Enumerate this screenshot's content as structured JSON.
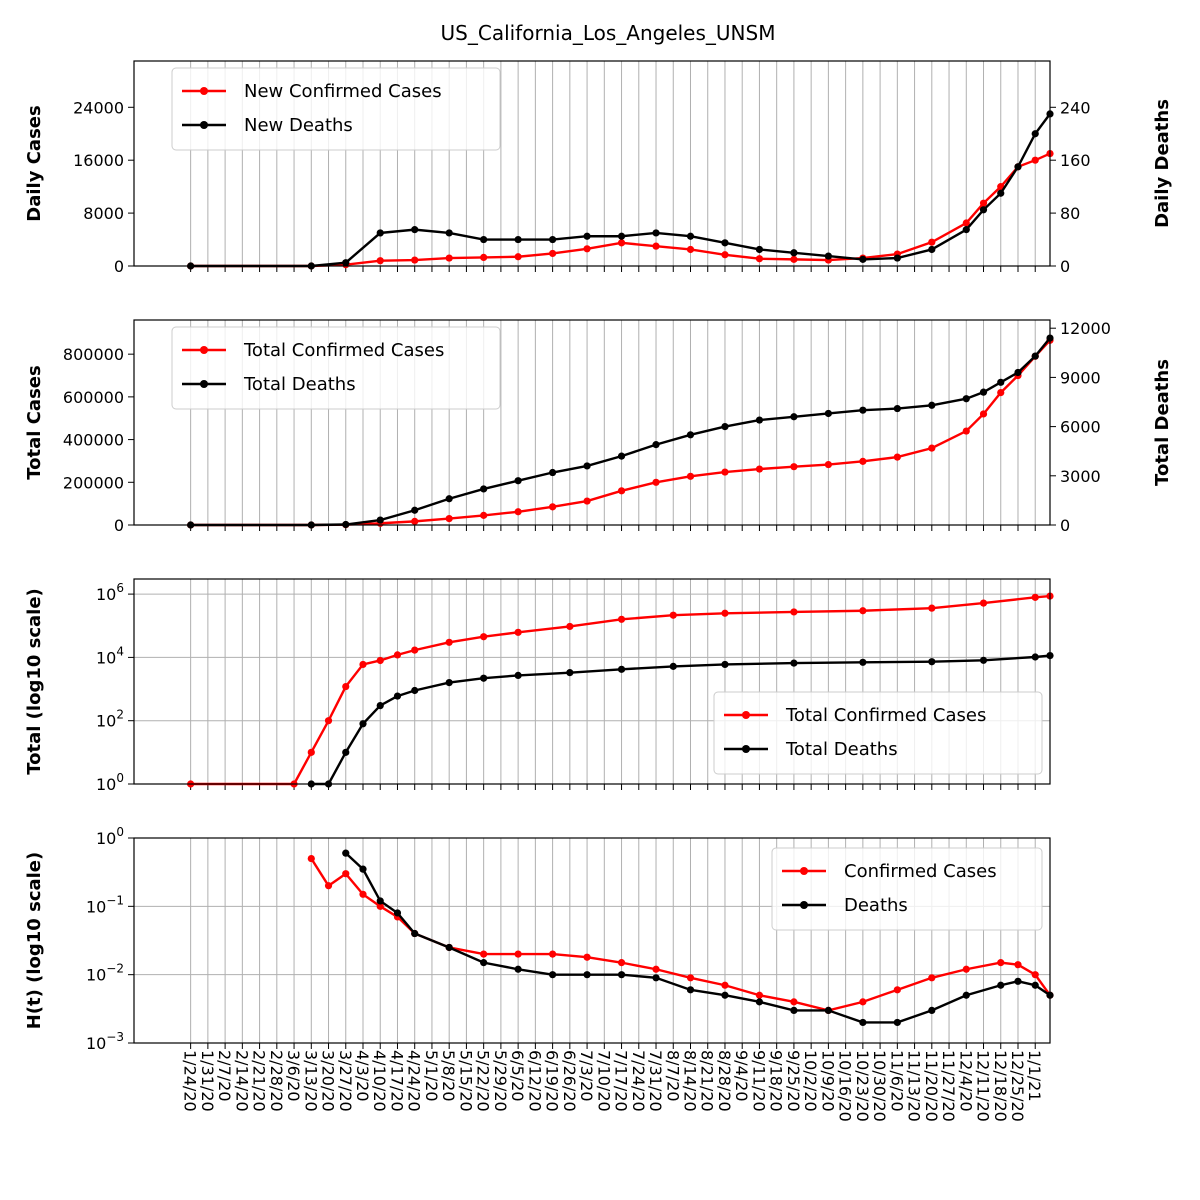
{
  "title": "US_California_Los_Angeles_UNSM",
  "colors": {
    "cases": "#ff0000",
    "deaths": "#000000",
    "grid": "#b0b0b0"
  },
  "x_tick_labels": [
    "1/24/20",
    "1/31/20",
    "2/7/20",
    "2/14/20",
    "2/21/20",
    "2/28/20",
    "3/6/20",
    "3/13/20",
    "3/20/20",
    "3/27/20",
    "4/3/20",
    "4/10/20",
    "4/17/20",
    "4/24/20",
    "5/1/20",
    "5/8/20",
    "5/15/20",
    "5/22/20",
    "5/29/20",
    "6/5/20",
    "6/12/20",
    "6/19/20",
    "6/26/20",
    "7/3/20",
    "7/10/20",
    "7/17/20",
    "7/24/20",
    "7/31/20",
    "8/7/20",
    "8/14/20",
    "8/21/20",
    "8/28/20",
    "9/4/20",
    "9/11/20",
    "9/18/20",
    "9/25/20",
    "10/2/20",
    "10/9/20",
    "10/16/20",
    "10/23/20",
    "10/30/20",
    "11/6/20",
    "11/13/20",
    "11/20/20",
    "11/27/20",
    "12/4/20",
    "12/11/20",
    "12/18/20",
    "12/25/20",
    "1/1/21"
  ],
  "chart_data": [
    {
      "type": "line",
      "x": [
        "1/24/20",
        "3/13/20",
        "3/27/20",
        "4/10/20",
        "4/24/20",
        "5/8/20",
        "5/22/20",
        "6/5/20",
        "6/19/20",
        "7/3/20",
        "7/17/20",
        "7/31/20",
        "8/14/20",
        "8/28/20",
        "9/11/20",
        "9/25/20",
        "10/9/20",
        "10/23/20",
        "11/6/20",
        "11/20/20",
        "12/4/20",
        "12/11/20",
        "12/18/20",
        "12/25/20",
        "1/1/21",
        "1/7/21"
      ],
      "series": [
        {
          "name": "New Confirmed Cases",
          "axis": "left",
          "values": [
            0,
            0,
            200,
            800,
            900,
            1200,
            1300,
            1400,
            1900,
            2600,
            3500,
            3000,
            2500,
            1700,
            1100,
            1000,
            900,
            1200,
            1800,
            3600,
            6500,
            9500,
            12000,
            15000,
            16000,
            17000
          ]
        },
        {
          "name": "New Deaths",
          "axis": "right",
          "values": [
            0,
            0,
            5,
            50,
            55,
            50,
            40,
            40,
            40,
            45,
            45,
            50,
            45,
            35,
            25,
            20,
            15,
            10,
            12,
            25,
            55,
            85,
            110,
            150,
            200,
            230
          ]
        }
      ],
      "ylabel": "Daily Cases",
      "ylabel_right": "Daily Deaths",
      "ylim": [
        0,
        31000
      ],
      "ylim_right": [
        0,
        310
      ],
      "yticks": [
        "0",
        "8000",
        "16000",
        "24000"
      ],
      "yticks_right": [
        "0",
        "80",
        "160",
        "240"
      ],
      "legend": "top-left",
      "grid": true
    },
    {
      "type": "line",
      "x": [
        "1/24/20",
        "3/13/20",
        "3/27/20",
        "4/10/20",
        "4/24/20",
        "5/8/20",
        "5/22/20",
        "6/5/20",
        "6/19/20",
        "7/3/20",
        "7/17/20",
        "7/31/20",
        "8/14/20",
        "8/28/20",
        "9/11/20",
        "9/25/20",
        "10/9/20",
        "10/23/20",
        "11/6/20",
        "11/20/20",
        "12/4/20",
        "12/11/20",
        "12/18/20",
        "12/25/20",
        "1/1/21",
        "1/7/21"
      ],
      "series": [
        {
          "name": "Total Confirmed Cases",
          "axis": "left",
          "values": [
            0,
            0,
            1500,
            8000,
            17000,
            30000,
            45000,
            62000,
            85000,
            112000,
            160000,
            200000,
            228000,
            248000,
            262000,
            273000,
            283000,
            298000,
            318000,
            360000,
            440000,
            520000,
            620000,
            700000,
            790000,
            865000
          ]
        },
        {
          "name": "Total Deaths",
          "axis": "right",
          "values": [
            0,
            0,
            30,
            300,
            900,
            1600,
            2200,
            2700,
            3200,
            3600,
            4200,
            4900,
            5500,
            6000,
            6400,
            6600,
            6800,
            7000,
            7100,
            7300,
            7700,
            8100,
            8700,
            9300,
            10300,
            11400
          ]
        }
      ],
      "ylabel": "Total Cases",
      "ylabel_right": "Total Deaths",
      "ylim": [
        0,
        960000
      ],
      "ylim_right": [
        0,
        12500
      ],
      "yticks": [
        "0",
        "200000",
        "400000",
        "600000",
        "800000"
      ],
      "yticks_right": [
        "0",
        "3000",
        "6000",
        "9000",
        "12000"
      ],
      "legend": "top-left",
      "grid": true
    },
    {
      "type": "line",
      "log_scale": true,
      "x": [
        "1/24/20",
        "3/6/20",
        "3/13/20",
        "3/20/20",
        "3/27/20",
        "4/3/20",
        "4/10/20",
        "4/17/20",
        "4/24/20",
        "5/8/20",
        "5/22/20",
        "6/5/20",
        "6/26/20",
        "7/17/20",
        "8/7/20",
        "8/28/20",
        "9/25/20",
        "10/23/20",
        "11/20/20",
        "12/11/20",
        "1/1/21",
        "1/7/21"
      ],
      "series": [
        {
          "name": "Total Confirmed Cases",
          "values": [
            1,
            1,
            10,
            100,
            1200,
            6000,
            8000,
            12000,
            17000,
            30000,
            45000,
            62000,
            95000,
            160000,
            215000,
            248000,
            273000,
            298000,
            360000,
            520000,
            790000,
            865000
          ]
        },
        {
          "name": "Total Deaths",
          "values": [
            null,
            null,
            1,
            1,
            10,
            80,
            300,
            600,
            900,
            1600,
            2200,
            2700,
            3300,
            4200,
            5200,
            6000,
            6600,
            7000,
            7300,
            8100,
            10300,
            11400
          ]
        }
      ],
      "ylabel": "Total (log10 scale)",
      "ylim": [
        1,
        3000000
      ],
      "yticks": [
        "10^0",
        "10^2",
        "10^4",
        "10^6"
      ],
      "legend": "bottom-right",
      "grid": true
    },
    {
      "type": "line",
      "log_scale": true,
      "x": [
        "3/13/20",
        "3/20/20",
        "3/27/20",
        "4/3/20",
        "4/10/20",
        "4/17/20",
        "4/24/20",
        "5/8/20",
        "5/22/20",
        "6/5/20",
        "6/19/20",
        "7/3/20",
        "7/17/20",
        "7/31/20",
        "8/14/20",
        "8/28/20",
        "9/11/20",
        "9/25/20",
        "10/9/20",
        "10/23/20",
        "11/6/20",
        "11/20/20",
        "12/4/20",
        "12/18/20",
        "12/25/20",
        "1/1/21",
        "1/7/21"
      ],
      "series": [
        {
          "name": "Confirmed Cases",
          "values": [
            0.5,
            0.2,
            0.3,
            0.15,
            0.1,
            0.07,
            0.04,
            0.025,
            0.02,
            0.02,
            0.02,
            0.018,
            0.015,
            0.012,
            0.009,
            0.007,
            0.005,
            0.004,
            0.003,
            0.004,
            0.006,
            0.009,
            0.012,
            0.015,
            0.014,
            0.01,
            0.005
          ]
        },
        {
          "name": "Deaths",
          "values": [
            null,
            null,
            0.6,
            0.35,
            0.12,
            0.08,
            0.04,
            0.025,
            0.015,
            0.012,
            0.01,
            0.01,
            0.01,
            0.009,
            0.006,
            0.005,
            0.004,
            0.003,
            0.003,
            0.002,
            0.002,
            0.003,
            0.005,
            0.007,
            0.008,
            0.007,
            0.005
          ]
        }
      ],
      "ylabel": "H(t) (log10 scale)",
      "ylim": [
        0.001,
        1
      ],
      "yticks": [
        "10^-3",
        "10^-2",
        "10^-1",
        "10^0"
      ],
      "legend": "top-right",
      "grid": true
    }
  ]
}
